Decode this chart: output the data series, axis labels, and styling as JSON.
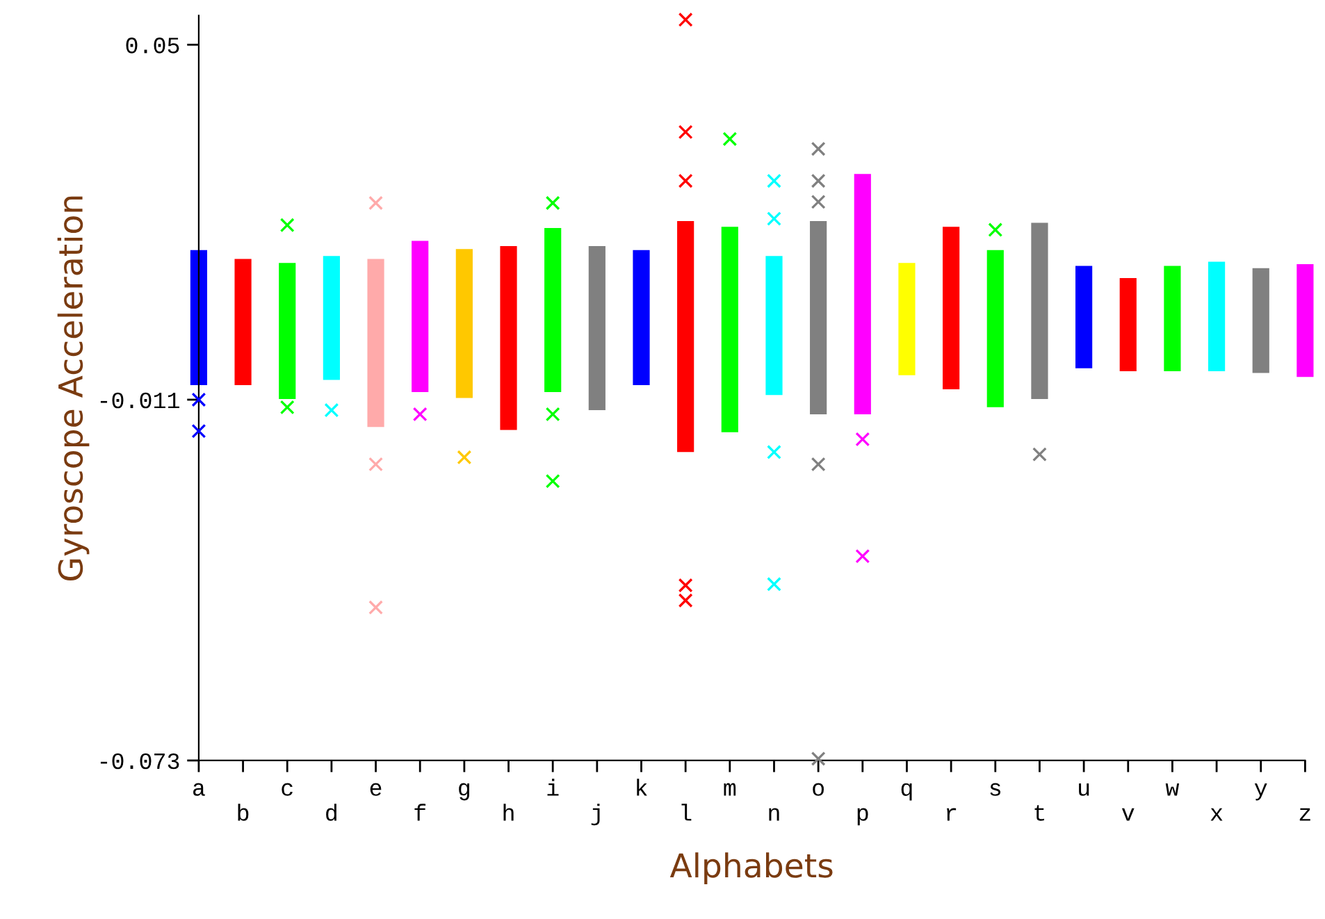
{
  "chart_data": {
    "type": "bar",
    "xlabel": "Alphabets",
    "ylabel": "Gyroscope Acceleration",
    "categories": [
      "a",
      "b",
      "c",
      "d",
      "e",
      "f",
      "g",
      "h",
      "i",
      "j",
      "k",
      "l",
      "m",
      "n",
      "o",
      "p",
      "q",
      "r",
      "s",
      "t",
      "u",
      "v",
      "w",
      "x",
      "y",
      "z"
    ],
    "base": [
      -0.0085,
      -0.0085,
      -0.0109,
      -0.0076,
      -0.0157,
      -0.0097,
      -0.0107,
      -0.0162,
      -0.0097,
      -0.0128,
      -0.0085,
      -0.02,
      -0.0166,
      -0.0102,
      -0.0135,
      -0.0135,
      -0.0068,
      -0.0092,
      -0.0123,
      -0.0109,
      -0.0056,
      -0.0061,
      -0.0061,
      -0.0061,
      -0.0064,
      -0.0071
    ],
    "values": [
      0.0232,
      0.0217,
      0.0234,
      0.0213,
      0.0289,
      0.026,
      0.0256,
      0.0316,
      0.0282,
      0.0282,
      0.0232,
      0.0397,
      0.0353,
      0.0239,
      0.0332,
      0.0413,
      0.0193,
      0.0279,
      0.027,
      0.0303,
      0.0176,
      0.016,
      0.0181,
      0.0188,
      0.018,
      0.0194
    ],
    "colors": [
      "#0000ff",
      "#ff0000",
      "#00ff00",
      "#00ffff",
      "#ffaaaa",
      "#ff00ff",
      "#ffc800",
      "#ff0000",
      "#00ff00",
      "#808080",
      "#0000ff",
      "#ff0000",
      "#00ff00",
      "#00ffff",
      "#808080",
      "#ff00ff",
      "#ffff00",
      "#ff0000",
      "#00ff00",
      "#808080",
      "#0000ff",
      "#ff0000",
      "#00ff00",
      "#00ffff",
      "#808080",
      "#ff00ff"
    ],
    "series": [
      {
        "type": "scatter",
        "color": "#0000ff",
        "x": [
          "a",
          "a"
        ],
        "values": [
          -0.0164,
          -0.011
        ]
      },
      {
        "type": "scatter",
        "color": "#00ff00",
        "x": [
          "c",
          "c"
        ],
        "values": [
          0.019,
          -0.0123
        ]
      },
      {
        "type": "scatter",
        "color": "#00ffff",
        "x": [
          "d"
        ],
        "values": [
          -0.0128
        ]
      },
      {
        "type": "scatter",
        "color": "#ffaaaa",
        "x": [
          "e",
          "e",
          "e"
        ],
        "values": [
          0.0228,
          -0.0221,
          -0.0467
        ]
      },
      {
        "type": "scatter",
        "color": "#ff00ff",
        "x": [
          "f"
        ],
        "values": [
          -0.0135
        ]
      },
      {
        "type": "scatter",
        "color": "#ffc800",
        "x": [
          "g"
        ],
        "values": [
          -0.0209
        ]
      },
      {
        "type": "scatter",
        "color": "#00ff00",
        "x": [
          "i",
          "i",
          "i"
        ],
        "values": [
          0.0228,
          -0.0135,
          -0.025
        ]
      },
      {
        "type": "scatter",
        "color": "#ff0000",
        "x": [
          "l",
          "l",
          "l",
          "l",
          "l"
        ],
        "values": [
          0.0543,
          0.035,
          0.0266,
          -0.0429,
          -0.0455
        ]
      },
      {
        "type": "scatter",
        "color": "#00ff00",
        "x": [
          "m"
        ],
        "values": [
          0.0338
        ]
      },
      {
        "type": "scatter",
        "color": "#00ffff",
        "x": [
          "n",
          "n",
          "n",
          "n"
        ],
        "values": [
          0.0266,
          0.0201,
          -0.02,
          -0.0427
        ]
      },
      {
        "type": "scatter",
        "color": "#808080",
        "x": [
          "o",
          "o",
          "o",
          "o",
          "o"
        ],
        "values": [
          0.0321,
          0.0266,
          0.023,
          -0.0221,
          -0.0727
        ]
      },
      {
        "type": "scatter",
        "color": "#ff00ff",
        "x": [
          "p",
          "p"
        ],
        "values": [
          -0.0178,
          -0.0379
        ]
      },
      {
        "type": "scatter",
        "color": "#00ff00",
        "x": [
          "s"
        ],
        "values": [
          0.0182
        ]
      },
      {
        "type": "scatter",
        "color": "#808080",
        "x": [
          "t"
        ],
        "values": [
          -0.0204
        ]
      }
    ],
    "marker": "cross",
    "ylim": [
      -0.073,
      0.055
    ],
    "yticks": [
      0.05,
      -0.011,
      -0.073
    ],
    "grid": false,
    "legend": false
  }
}
